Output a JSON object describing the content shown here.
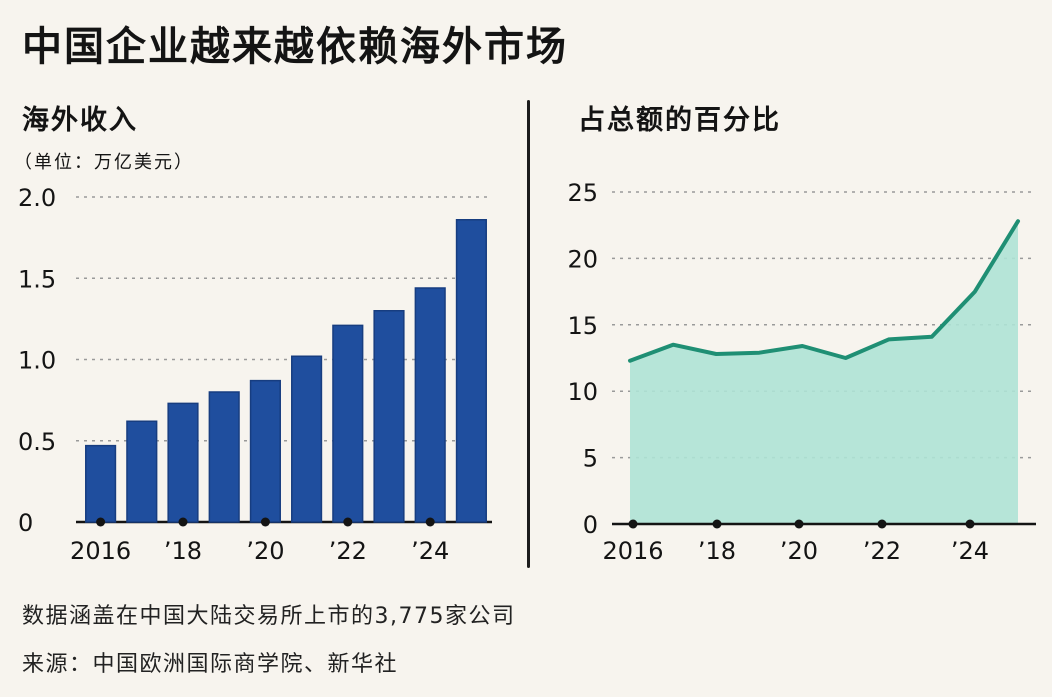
{
  "title": "中国企业越来越依赖海外市场",
  "footnote": "数据涵盖在中国大陆交易所上市的3,775家公司",
  "source": "来源：中国欧洲国际商学院、新华社",
  "colors": {
    "bar": "#1f4e9e",
    "line": "#1f8f74",
    "area": "#aee3d5",
    "grid": "#9a9a9a"
  },
  "chart_data": [
    {
      "type": "bar",
      "title": "海外收入",
      "subtitle": "（单位：万亿美元）",
      "x": [
        2016,
        2017,
        2018,
        2019,
        2020,
        2021,
        2022,
        2023,
        2024,
        2025
      ],
      "values": [
        0.47,
        0.62,
        0.73,
        0.8,
        0.87,
        1.02,
        1.21,
        1.3,
        1.44,
        1.86
      ],
      "ylim": [
        0,
        2.0
      ],
      "yticks": [
        0,
        0.5,
        1.0,
        1.5,
        2.0
      ],
      "ytick_labels": [
        "0",
        "0.5",
        "1.0",
        "1.5",
        "2.0"
      ],
      "xtick_values": [
        2016,
        2018,
        2020,
        2022,
        2024
      ],
      "xtick_labels": [
        "2016",
        "’18",
        "’20",
        "’22",
        "’24"
      ],
      "grid": true
    },
    {
      "type": "area",
      "title": "占总额的百分比",
      "x": [
        2016,
        2017,
        2018,
        2019,
        2020,
        2021,
        2022,
        2023,
        2024,
        2025
      ],
      "values": [
        12.3,
        13.5,
        12.8,
        12.9,
        13.4,
        12.5,
        13.9,
        14.1,
        17.5,
        22.8
      ],
      "ylim": [
        0,
        25
      ],
      "yticks": [
        0,
        5,
        10,
        15,
        20,
        25
      ],
      "ytick_labels": [
        "0",
        "5",
        "10",
        "15",
        "20",
        "25"
      ],
      "xtick_values": [
        2016,
        2018,
        2020,
        2022,
        2024
      ],
      "xtick_labels": [
        "2016",
        "’18",
        "’20",
        "’22",
        "’24"
      ],
      "grid": true
    }
  ]
}
